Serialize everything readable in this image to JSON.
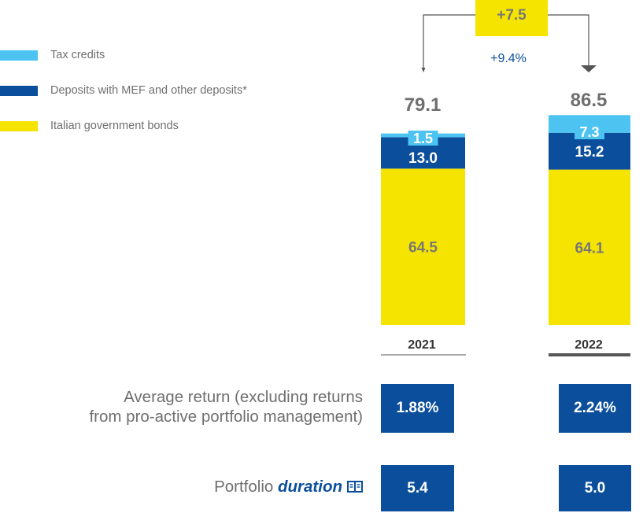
{
  "chart_data": {
    "type": "bar",
    "stacked": true,
    "categories": [
      "2021",
      "2022"
    ],
    "series": [
      {
        "name": "Italian government bonds",
        "values": [
          64.5,
          64.1
        ],
        "color": "#f5e400",
        "label_color": "#777777"
      },
      {
        "name": "Deposits with MEF and other deposits*",
        "values": [
          13.0,
          15.2
        ],
        "color": "#0b4f9c",
        "label_color": "#ffffff"
      },
      {
        "name": "Tax credits",
        "values": [
          1.5,
          7.3
        ],
        "color": "#4cc3f0",
        "label_color": "#ffffff"
      }
    ],
    "totals": [
      "79.1",
      "86.5"
    ],
    "value_labels": [
      [
        "64.5",
        "13.0",
        "1.5"
      ],
      [
        "64.1",
        "15.2",
        "7.3"
      ]
    ],
    "change": {
      "absolute": "+7.5",
      "percent": "+9.4%"
    },
    "legend_position": "top-left"
  },
  "metrics": {
    "average_return": {
      "label_line1": "Average return (excluding returns",
      "label_line2": "from pro-active portfolio management)",
      "values": [
        "1.88%",
        "2.24%"
      ]
    },
    "duration": {
      "label_prefix": "Portfolio",
      "label_emphasis": "duration",
      "icon": "book-icon",
      "values": [
        "5.4",
        "5.0"
      ]
    }
  }
}
